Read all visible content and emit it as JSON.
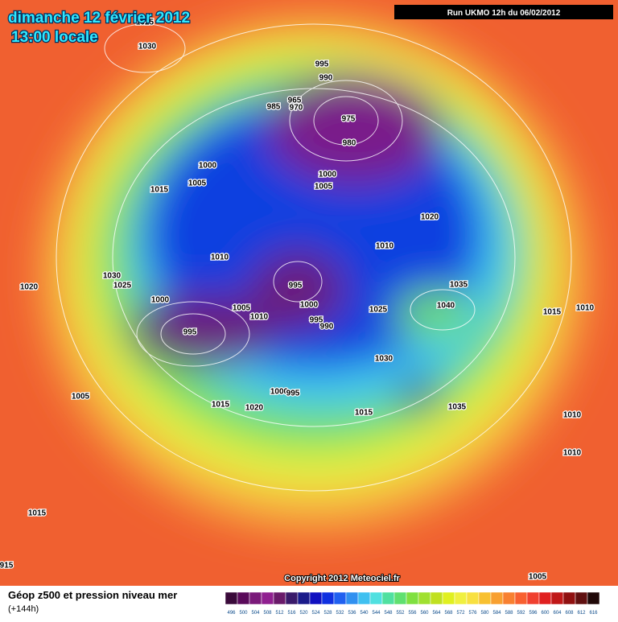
{
  "header": {
    "date": "dimanche 12 février 2012",
    "time": "13:00 locale",
    "run": "Run UKMO 12h du 06/02/2012"
  },
  "copyright": "Copyright 2012 Meteociel.fr",
  "footer": {
    "title": "Géop z500 et pression niveau mer",
    "lead": "(+144h)"
  },
  "colorbar": {
    "labels": [
      496,
      500,
      504,
      508,
      512,
      516,
      520,
      524,
      528,
      532,
      536,
      540,
      544,
      548,
      552,
      556,
      560,
      564,
      568,
      572,
      576,
      580,
      584,
      588,
      592,
      596,
      600,
      604,
      608,
      612,
      616
    ],
    "colors": [
      "#3a0a3a",
      "#5a0a5a",
      "#7a1a7a",
      "#902090",
      "#6a1a6a",
      "#3a1a6a",
      "#1a1a8a",
      "#1010c0",
      "#1030e0",
      "#2060f0",
      "#3090f0",
      "#40c0f0",
      "#50e0e0",
      "#50e0a0",
      "#60e070",
      "#80e040",
      "#a0e030",
      "#c0e020",
      "#e0f020",
      "#f0f040",
      "#f8e040",
      "#f8c030",
      "#f8a030",
      "#f88030",
      "#f86030",
      "#f04030",
      "#e02020",
      "#c01818",
      "#901010",
      "#601010",
      "#200808"
    ]
  },
  "isobar_labels": [
    "1025",
    "1030",
    "995",
    "990",
    "965",
    "985",
    "970",
    "975",
    "980",
    "1000",
    "1000",
    "1005",
    "1005",
    "1015",
    "1020",
    "1010",
    "1010",
    "1030",
    "1025",
    "995",
    "1035",
    "1020",
    "1000",
    "1005",
    "1000",
    "1040",
    "1025",
    "1015",
    "1010",
    "1010",
    "995",
    "990",
    "995",
    "1030",
    "1005",
    "1000",
    "995",
    "1015",
    "1020",
    "1015",
    "1035",
    "1010",
    "1010",
    "1015",
    "1005",
    "915"
  ]
}
